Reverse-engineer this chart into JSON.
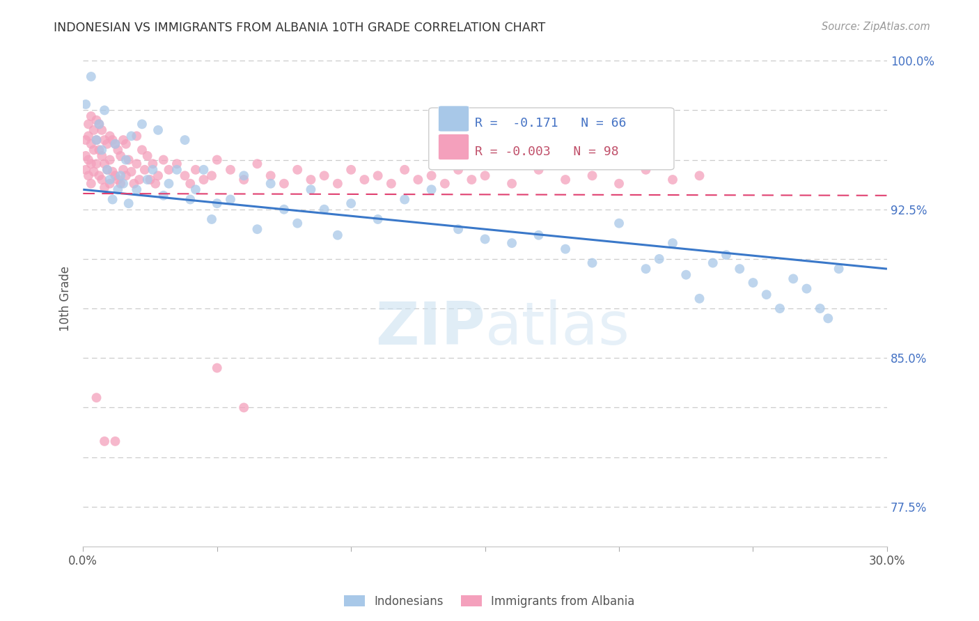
{
  "title": "INDONESIAN VS IMMIGRANTS FROM ALBANIA 10TH GRADE CORRELATION CHART",
  "source": "Source: ZipAtlas.com",
  "ylabel": "10th Grade",
  "color_blue": "#a8c8e8",
  "color_pink": "#f4a0bc",
  "color_blue_line": "#3a78c9",
  "color_pink_line": "#e04070",
  "watermark_zip": "ZIP",
  "watermark_atlas": "atlas",
  "xlim": [
    0.0,
    0.3
  ],
  "ylim": [
    0.755,
    1.005
  ],
  "ytick_vals": [
    0.775,
    0.8,
    0.825,
    0.85,
    0.875,
    0.9,
    0.925,
    0.95,
    0.975,
    1.0
  ],
  "ytick_labels_right": [
    "77.5%",
    "",
    "",
    "85.0%",
    "",
    "",
    "92.5%",
    "",
    "",
    "100.0%"
  ],
  "xtick_positions": [
    0.0,
    0.05,
    0.1,
    0.15,
    0.2,
    0.25,
    0.3
  ],
  "xtick_labels": [
    "0.0%",
    "",
    "",
    "",
    "",
    "",
    "30.0%"
  ],
  "legend_r1": "R =  -0.171",
  "legend_n1": "N = 66",
  "legend_r2": "R = -0.003",
  "legend_n2": "N = 98",
  "blue_x": [
    0.001,
    0.003,
    0.005,
    0.006,
    0.007,
    0.008,
    0.009,
    0.01,
    0.011,
    0.012,
    0.013,
    0.014,
    0.015,
    0.016,
    0.017,
    0.018,
    0.02,
    0.022,
    0.024,
    0.026,
    0.028,
    0.03,
    0.032,
    0.035,
    0.038,
    0.04,
    0.042,
    0.045,
    0.048,
    0.05,
    0.055,
    0.06,
    0.065,
    0.07,
    0.075,
    0.08,
    0.085,
    0.09,
    0.095,
    0.1,
    0.11,
    0.12,
    0.13,
    0.14,
    0.15,
    0.16,
    0.17,
    0.18,
    0.19,
    0.2,
    0.21,
    0.215,
    0.22,
    0.225,
    0.23,
    0.235,
    0.24,
    0.245,
    0.25,
    0.255,
    0.26,
    0.265,
    0.27,
    0.275,
    0.278,
    0.282
  ],
  "blue_y": [
    0.978,
    0.992,
    0.96,
    0.968,
    0.955,
    0.975,
    0.945,
    0.94,
    0.93,
    0.958,
    0.935,
    0.942,
    0.938,
    0.95,
    0.928,
    0.962,
    0.935,
    0.968,
    0.94,
    0.945,
    0.965,
    0.932,
    0.938,
    0.945,
    0.96,
    0.93,
    0.935,
    0.945,
    0.92,
    0.928,
    0.93,
    0.942,
    0.915,
    0.938,
    0.925,
    0.918,
    0.935,
    0.925,
    0.912,
    0.928,
    0.92,
    0.93,
    0.935,
    0.915,
    0.91,
    0.908,
    0.912,
    0.905,
    0.898,
    0.918,
    0.895,
    0.9,
    0.908,
    0.892,
    0.88,
    0.898,
    0.902,
    0.895,
    0.888,
    0.882,
    0.875,
    0.89,
    0.885,
    0.875,
    0.87,
    0.895
  ],
  "pink_x": [
    0.001,
    0.001,
    0.001,
    0.002,
    0.002,
    0.002,
    0.002,
    0.003,
    0.003,
    0.003,
    0.003,
    0.004,
    0.004,
    0.004,
    0.005,
    0.005,
    0.005,
    0.006,
    0.006,
    0.006,
    0.007,
    0.007,
    0.007,
    0.008,
    0.008,
    0.008,
    0.009,
    0.009,
    0.01,
    0.01,
    0.01,
    0.011,
    0.011,
    0.012,
    0.012,
    0.013,
    0.013,
    0.014,
    0.014,
    0.015,
    0.015,
    0.016,
    0.016,
    0.017,
    0.018,
    0.019,
    0.02,
    0.02,
    0.021,
    0.022,
    0.023,
    0.024,
    0.025,
    0.026,
    0.027,
    0.028,
    0.03,
    0.032,
    0.035,
    0.038,
    0.04,
    0.042,
    0.045,
    0.048,
    0.05,
    0.055,
    0.06,
    0.065,
    0.07,
    0.075,
    0.08,
    0.085,
    0.09,
    0.095,
    0.1,
    0.105,
    0.11,
    0.115,
    0.12,
    0.125,
    0.13,
    0.135,
    0.14,
    0.145,
    0.15,
    0.16,
    0.17,
    0.18,
    0.19,
    0.2,
    0.21,
    0.22,
    0.23,
    0.05,
    0.06,
    0.005,
    0.012,
    0.008
  ],
  "pink_y": [
    0.96,
    0.952,
    0.945,
    0.968,
    0.962,
    0.95,
    0.942,
    0.972,
    0.958,
    0.948,
    0.938,
    0.965,
    0.955,
    0.944,
    0.97,
    0.96,
    0.948,
    0.968,
    0.955,
    0.942,
    0.965,
    0.952,
    0.94,
    0.96,
    0.948,
    0.936,
    0.958,
    0.945,
    0.962,
    0.95,
    0.938,
    0.96,
    0.944,
    0.958,
    0.942,
    0.955,
    0.94,
    0.952,
    0.938,
    0.96,
    0.945,
    0.958,
    0.942,
    0.95,
    0.944,
    0.938,
    0.962,
    0.948,
    0.94,
    0.955,
    0.945,
    0.952,
    0.94,
    0.948,
    0.938,
    0.942,
    0.95,
    0.945,
    0.948,
    0.942,
    0.938,
    0.945,
    0.94,
    0.942,
    0.95,
    0.945,
    0.94,
    0.948,
    0.942,
    0.938,
    0.945,
    0.94,
    0.942,
    0.938,
    0.945,
    0.94,
    0.942,
    0.938,
    0.945,
    0.94,
    0.942,
    0.938,
    0.945,
    0.94,
    0.942,
    0.938,
    0.945,
    0.94,
    0.942,
    0.938,
    0.945,
    0.94,
    0.942,
    0.845,
    0.825,
    0.83,
    0.808,
    0.808
  ],
  "blue_trend_x": [
    0.0,
    0.3
  ],
  "blue_trend_y": [
    0.935,
    0.895
  ],
  "pink_trend_x": [
    0.0,
    0.3
  ],
  "pink_trend_y": [
    0.933,
    0.932
  ]
}
